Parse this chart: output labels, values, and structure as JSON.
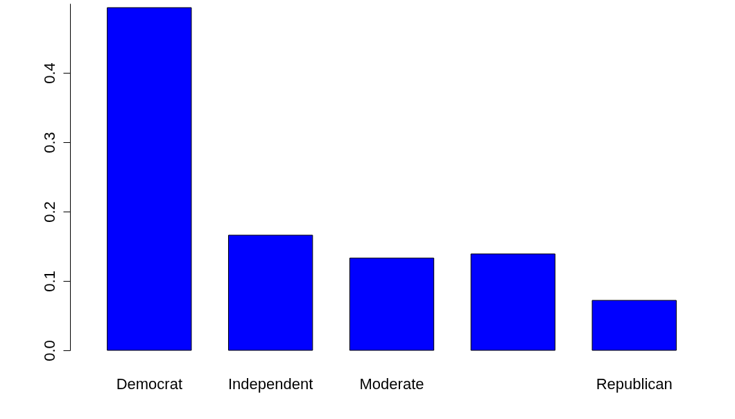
{
  "chart_data": {
    "type": "bar",
    "categories": [
      "Democrat",
      "Independent",
      "Moderate",
      null,
      "Republican"
    ],
    "values": [
      0.494,
      0.166,
      0.133,
      0.139,
      0.072
    ],
    "color": "#0000ff",
    "ylim": [
      0,
      0.5
    ],
    "yticks": [
      {
        "value": 0,
        "label": "0.0"
      },
      0.1,
      0.2,
      0.3,
      0.4
    ],
    "grid": false
  }
}
